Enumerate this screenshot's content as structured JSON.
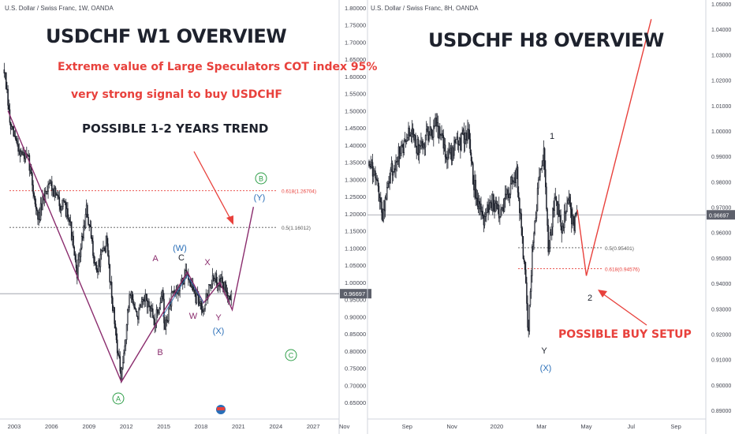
{
  "left_panel": {
    "header": "U.S. Dollar / Swiss Franc, 1W, OANDA",
    "title": "USDCHF W1 OVERVIEW",
    "note1": "Extreme value of Large Speculators COT index 95%",
    "note2": "very strong signal to buy USDCHF",
    "note3": "POSSIBLE 1-2 YEARS TREND",
    "current_price_label": "0.96697",
    "fib_labels": [
      "0.618(1.26704)",
      "0.5(1.16012)"
    ],
    "wave_labels": [
      "A",
      "C",
      "X",
      "(W)",
      "W",
      "Y",
      "(X)",
      "B",
      "(A)",
      "(B)",
      "(Y)",
      "(C)"
    ]
  },
  "right_panel": {
    "header": "U.S. Dollar / Swiss Franc, 8H, OANDA",
    "title": "USDCHF H8 OVERVIEW",
    "setup_label": "POSSIBLE BUY SETUP",
    "current_price_label": "0.96697",
    "fib_labels": [
      "0.5(0.95401)",
      "0.618(0.94576)"
    ],
    "wave_labels": [
      "1",
      "2",
      "Y",
      "(X)"
    ]
  },
  "colors": {
    "bull_candle": "#ffffff",
    "bear_candle": "#1e222d",
    "wave_line": "#8b2d6e",
    "fib_red": "#e8413c",
    "fib_gray": "#555555",
    "arrow_red": "#e8413c",
    "circle_green": "#2e9e48",
    "blue_label": "#2a6fb8",
    "price_line": "#9598a1"
  },
  "chart_data": [
    {
      "type": "candlestick",
      "title": "USDCHF W1 OVERVIEW",
      "timeframe": "1W",
      "x_tick_labels": [
        "2003",
        "2006",
        "2009",
        "2012",
        "2015",
        "2018",
        "2021",
        "2024",
        "2027",
        "Nov"
      ],
      "y_tick_labels": [
        "1.80000",
        "1.75000",
        "1.70000",
        "1.65000",
        "1.60000",
        "1.55000",
        "1.50000",
        "1.45000",
        "1.40000",
        "1.35000",
        "1.30000",
        "1.25000",
        "1.20000",
        "1.15000",
        "1.10000",
        "1.05000",
        "1.00000",
        "0.95000",
        "0.90000",
        "0.85000",
        "0.80000",
        "0.75000",
        "0.70000",
        "0.65000"
      ],
      "ylim": [
        0.62,
        1.81
      ],
      "price_path": [
        [
          2002.2,
          1.62
        ],
        [
          2002.7,
          1.45
        ],
        [
          2003.5,
          1.38
        ],
        [
          2004.2,
          1.35
        ],
        [
          2004.9,
          1.18
        ],
        [
          2005.8,
          1.3
        ],
        [
          2006.5,
          1.24
        ],
        [
          2007.4,
          1.2
        ],
        [
          2008.0,
          1.02
        ],
        [
          2008.8,
          1.21
        ],
        [
          2009.6,
          1.03
        ],
        [
          2010.4,
          1.12
        ],
        [
          2011.0,
          0.9
        ],
        [
          2011.6,
          0.71
        ],
        [
          2012.3,
          0.98
        ],
        [
          2012.8,
          0.9
        ],
        [
          2013.6,
          0.95
        ],
        [
          2014.3,
          0.88
        ],
        [
          2014.9,
          0.98
        ],
        [
          2015.05,
          0.86
        ],
        [
          2015.6,
          0.95
        ],
        [
          2016.5,
          1.0
        ],
        [
          2016.9,
          1.03
        ],
        [
          2017.6,
          0.95
        ],
        [
          2018.2,
          0.93
        ],
        [
          2018.8,
          1.0
        ],
        [
          2019.4,
          1.01
        ],
        [
          2020.1,
          0.97
        ],
        [
          2020.5,
          0.96
        ]
      ],
      "wave_path": [
        [
          2002.5,
          1.5
        ],
        [
          2011.6,
          0.71
        ],
        [
          2016.9,
          1.03
        ],
        [
          2018.2,
          0.94
        ],
        [
          2019.5,
          1.0
        ],
        [
          2020.5,
          0.92
        ],
        [
          2022.2,
          1.22
        ]
      ],
      "fibonacci": [
        {
          "level": 0.618,
          "price": 1.26704
        },
        {
          "level": 0.5,
          "price": 1.16012
        }
      ],
      "current_price": 0.96697
    },
    {
      "type": "candlestick",
      "title": "USDCHF H8 OVERVIEW",
      "timeframe": "8H",
      "x_tick_labels": [
        "Sep",
        "Nov",
        "2020",
        "Mar",
        "May",
        "Jul",
        "Sep"
      ],
      "y_tick_labels": [
        "1.05000",
        "1.04000",
        "1.03000",
        "1.02000",
        "1.01000",
        "1.00000",
        "0.99000",
        "0.98000",
        "0.97000",
        "0.96000",
        "0.95000",
        "0.94000",
        "0.93000",
        "0.92000",
        "0.91000",
        "0.90000",
        "0.89000"
      ],
      "ylim": [
        0.887,
        1.052
      ],
      "price_path": [
        [
          0.0,
          0.988
        ],
        [
          0.3,
          0.982
        ],
        [
          0.6,
          0.967
        ],
        [
          1.0,
          0.985
        ],
        [
          1.4,
          0.992
        ],
        [
          1.8,
          1.0
        ],
        [
          2.2,
          0.993
        ],
        [
          2.6,
          0.999
        ],
        [
          3.0,
          1.002
        ],
        [
          3.5,
          0.99
        ],
        [
          4.0,
          0.995
        ],
        [
          4.4,
          1.0
        ],
        [
          4.7,
          0.978
        ],
        [
          5.1,
          0.966
        ],
        [
          5.5,
          0.972
        ],
        [
          5.9,
          0.968
        ],
        [
          6.3,
          0.978
        ],
        [
          6.6,
          0.984
        ],
        [
          6.8,
          0.96
        ],
        [
          7.0,
          0.942
        ],
        [
          7.1,
          0.918
        ],
        [
          7.3,
          0.955
        ],
        [
          7.6,
          0.983
        ],
        [
          7.8,
          0.99
        ],
        [
          8.0,
          0.952
        ],
        [
          8.3,
          0.975
        ],
        [
          8.6,
          0.96
        ],
        [
          8.9,
          0.973
        ],
        [
          9.1,
          0.962
        ],
        [
          9.3,
          0.966
        ]
      ],
      "projection": [
        [
          9.3,
          0.969
        ],
        [
          9.7,
          0.943
        ],
        [
          12.6,
          1.044
        ]
      ],
      "fibonacci": [
        {
          "level": 0.5,
          "price": 0.95401
        },
        {
          "level": 0.618,
          "price": 0.94576
        }
      ],
      "current_price": 0.96697
    }
  ]
}
